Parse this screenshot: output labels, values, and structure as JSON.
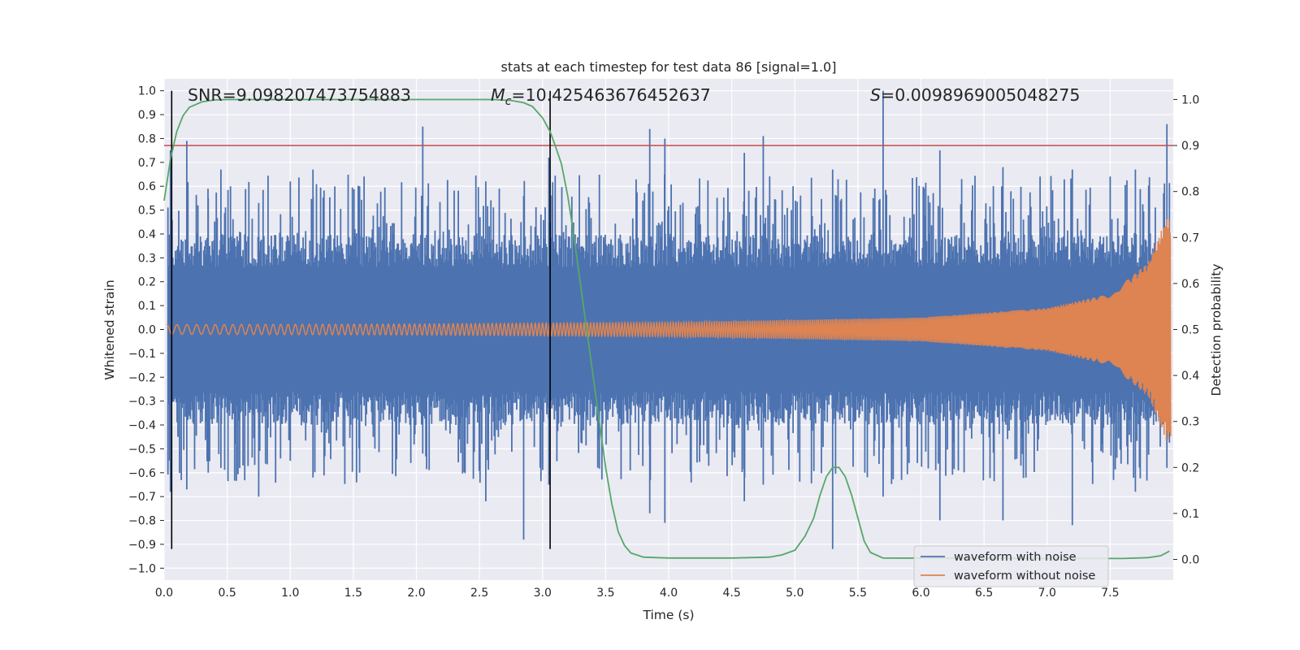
{
  "chart_data": {
    "type": "line",
    "title": "stats at each timestep for test data 86 [signal=1.0]",
    "xlabel": "Time (s)",
    "ylabel_left": "Whitened strain",
    "ylabel_right": "Detection probability",
    "xlim": [
      0.0,
      8.0
    ],
    "ylim_left": [
      -1.05,
      1.05
    ],
    "ylim_right": [
      -0.045,
      1.045
    ],
    "grid": true,
    "x_ticks": [
      "0.0",
      "0.5",
      "1.0",
      "1.5",
      "2.0",
      "2.5",
      "3.0",
      "3.5",
      "4.0",
      "4.5",
      "5.0",
      "5.5",
      "6.0",
      "6.5",
      "7.0",
      "7.5"
    ],
    "y_ticks_left": [
      "1.0",
      "0.9",
      "0.8",
      "0.7",
      "0.6",
      "0.5",
      "0.4",
      "0.3",
      "0.2",
      "0.1",
      "0.0",
      "−0.1",
      "−0.2",
      "−0.3",
      "−0.4",
      "−0.5",
      "−0.6",
      "−0.7",
      "−0.8",
      "−0.9",
      "−1.0"
    ],
    "y_ticks_right": [
      "1.0",
      "0.9",
      "0.8",
      "0.7",
      "0.6",
      "0.5",
      "0.4",
      "0.3",
      "0.2",
      "0.1",
      "0.0"
    ],
    "annotations": {
      "snr": "SNR=9.098207473754883",
      "mc_symbol": "M",
      "mc_sub": "c",
      "mc_value": "=10.425463676452637",
      "s_symbol": "S",
      "s_value": "=0.0098969005048275"
    },
    "threshold": {
      "axis": "right",
      "value": 0.9,
      "color": "#c44e52"
    },
    "vertical_lines": [
      0.06,
      3.06
    ],
    "series": [
      {
        "name": "waveform with noise",
        "axis": "left",
        "color": "#4c72b0",
        "envelope_peaks": [
          [
            0.05,
            0.75,
            -0.68
          ],
          [
            0.18,
            0.79,
            -0.67
          ],
          [
            0.35,
            0.55,
            -0.6
          ],
          [
            0.45,
            0.67,
            -0.58
          ],
          [
            0.75,
            0.53,
            -0.7
          ],
          [
            1.0,
            0.62,
            -0.55
          ],
          [
            1.18,
            0.67,
            -0.62
          ],
          [
            1.55,
            0.6,
            -0.6
          ],
          [
            2.05,
            0.85,
            -0.52
          ],
          [
            2.55,
            0.62,
            -0.72
          ],
          [
            2.85,
            0.56,
            -0.88
          ],
          [
            3.05,
            0.72,
            -0.65
          ],
          [
            3.85,
            0.84,
            -0.77
          ],
          [
            3.97,
            0.8,
            -0.81
          ],
          [
            4.6,
            0.74,
            -0.72
          ],
          [
            4.75,
            0.81,
            -0.65
          ],
          [
            5.3,
            0.67,
            -0.92
          ],
          [
            5.7,
            1.0,
            -0.7
          ],
          [
            6.15,
            0.75,
            -0.8
          ],
          [
            6.65,
            0.68,
            -0.8
          ],
          [
            7.2,
            0.67,
            -0.82
          ],
          [
            7.7,
            0.67,
            -0.68
          ],
          [
            7.95,
            0.86,
            -0.58
          ]
        ]
      },
      {
        "name": "waveform without noise",
        "axis": "left",
        "color": "#dd8452",
        "amplitude_samples": [
          [
            0.0,
            0.02
          ],
          [
            2.0,
            0.023
          ],
          [
            4.0,
            0.03
          ],
          [
            6.0,
            0.05
          ],
          [
            7.0,
            0.09
          ],
          [
            7.5,
            0.15
          ],
          [
            7.8,
            0.28
          ],
          [
            7.95,
            0.47
          ],
          [
            8.0,
            0.45
          ]
        ]
      },
      {
        "name": "detection probability",
        "axis": "right",
        "color": "#55a868",
        "points": [
          [
            0.0,
            0.78
          ],
          [
            0.05,
            0.87
          ],
          [
            0.1,
            0.93
          ],
          [
            0.15,
            0.965
          ],
          [
            0.2,
            0.983
          ],
          [
            0.3,
            0.995
          ],
          [
            0.4,
            0.999
          ],
          [
            0.5,
            1.0
          ],
          [
            2.6,
            1.0
          ],
          [
            2.75,
            0.998
          ],
          [
            2.85,
            0.993
          ],
          [
            2.92,
            0.985
          ],
          [
            3.0,
            0.96
          ],
          [
            3.06,
            0.93
          ],
          [
            3.1,
            0.9
          ],
          [
            3.15,
            0.86
          ],
          [
            3.2,
            0.79
          ],
          [
            3.25,
            0.7
          ],
          [
            3.3,
            0.6
          ],
          [
            3.35,
            0.5
          ],
          [
            3.4,
            0.4
          ],
          [
            3.45,
            0.3
          ],
          [
            3.5,
            0.2
          ],
          [
            3.55,
            0.12
          ],
          [
            3.6,
            0.06
          ],
          [
            3.65,
            0.03
          ],
          [
            3.7,
            0.014
          ],
          [
            3.8,
            0.005
          ],
          [
            4.0,
            0.003
          ],
          [
            4.5,
            0.003
          ],
          [
            4.8,
            0.005
          ],
          [
            4.9,
            0.01
          ],
          [
            5.0,
            0.02
          ],
          [
            5.08,
            0.05
          ],
          [
            5.15,
            0.09
          ],
          [
            5.2,
            0.14
          ],
          [
            5.25,
            0.18
          ],
          [
            5.3,
            0.2
          ],
          [
            5.35,
            0.2
          ],
          [
            5.4,
            0.18
          ],
          [
            5.45,
            0.14
          ],
          [
            5.5,
            0.09
          ],
          [
            5.55,
            0.04
          ],
          [
            5.6,
            0.015
          ],
          [
            5.7,
            0.003
          ],
          [
            7.6,
            0.002
          ],
          [
            7.8,
            0.004
          ],
          [
            7.9,
            0.008
          ],
          [
            7.97,
            0.018
          ]
        ]
      }
    ],
    "legend": {
      "position": "lower right",
      "entries": [
        {
          "label": "waveform with noise",
          "color": "#4c72b0"
        },
        {
          "label": "waveform without noise",
          "color": "#dd8452"
        }
      ]
    }
  }
}
